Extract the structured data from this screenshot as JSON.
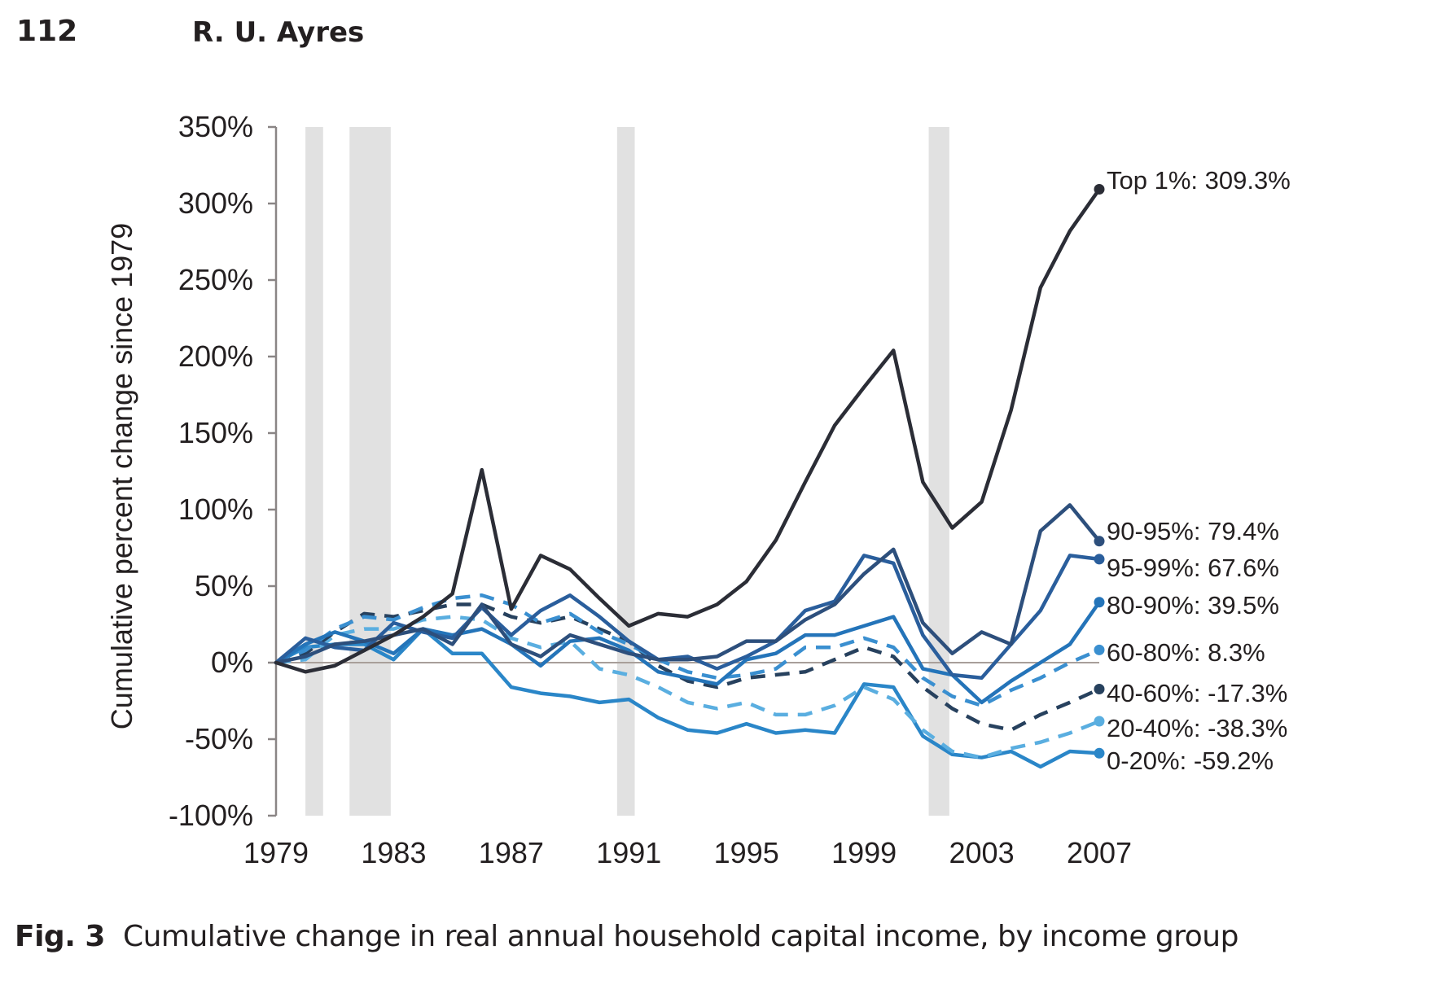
{
  "header": {
    "page_number": "112",
    "author": "R. U. Ayres"
  },
  "caption": {
    "label": "Fig. 3",
    "text": "Cumulative change in real annual household capital income, by income group"
  },
  "chart_data": {
    "type": "line",
    "title": "",
    "xlabel": "",
    "ylabel": "Cumulative percent change since 1979",
    "xlim": [
      1979,
      2007
    ],
    "ylim": [
      -100,
      350
    ],
    "x_ticks": [
      1979,
      1983,
      1987,
      1991,
      1995,
      1999,
      2003,
      2007
    ],
    "y_ticks": [
      -100,
      -50,
      0,
      50,
      100,
      150,
      200,
      250,
      300,
      350
    ],
    "y_tick_labels": [
      "-100%",
      "-50%",
      "0%",
      "50%",
      "100%",
      "150%",
      "200%",
      "250%",
      "300%",
      "350%"
    ],
    "x_tick_labels": [
      "1979",
      "1983",
      "1987",
      "1991",
      "1995",
      "1999",
      "2003",
      "2007"
    ],
    "grid": false,
    "recession_bands": [
      [
        1980.0,
        1980.6
      ],
      [
        1981.5,
        1982.9
      ],
      [
        1990.6,
        1991.2
      ],
      [
        2001.2,
        2001.9
      ]
    ],
    "legend": "end-of-line labels (right)",
    "x": [
      1979,
      1980,
      1981,
      1982,
      1983,
      1984,
      1985,
      1986,
      1987,
      1988,
      1989,
      1990,
      1991,
      1992,
      1993,
      1994,
      1995,
      1996,
      1997,
      1998,
      1999,
      2000,
      2001,
      2002,
      2003,
      2004,
      2005,
      2006,
      2007
    ],
    "series": [
      {
        "name": "Top 1%",
        "end_label": "Top 1%: 309.3%",
        "color": "#2b2d36",
        "dashed": false,
        "values": [
          0,
          -6,
          -2,
          8,
          18,
          30,
          45,
          126,
          35,
          70,
          61,
          42,
          24,
          32,
          30,
          38,
          53,
          80,
          118,
          155,
          180,
          204,
          118,
          88,
          105,
          165,
          245,
          282,
          309.3
        ]
      },
      {
        "name": "90-95%",
        "end_label": "90-95%: 79.4%",
        "color": "#2d4f7c",
        "dashed": false,
        "values": [
          0,
          4,
          12,
          14,
          18,
          22,
          12,
          38,
          12,
          4,
          18,
          12,
          6,
          2,
          2,
          4,
          14,
          14,
          28,
          38,
          58,
          74,
          26,
          6,
          20,
          12,
          86,
          103,
          79.4
        ]
      },
      {
        "name": "95-99%",
        "end_label": "95-99%: 67.6%",
        "color": "#2a5e9c",
        "dashed": false,
        "values": [
          0,
          16,
          10,
          8,
          26,
          20,
          16,
          36,
          18,
          34,
          44,
          30,
          14,
          2,
          4,
          -4,
          4,
          14,
          34,
          40,
          70,
          65,
          18,
          -8,
          -10,
          12,
          34,
          70,
          67.6
        ]
      },
      {
        "name": "80-90%",
        "end_label": "80-90%: 39.5%",
        "color": "#2474b9",
        "dashed": false,
        "values": [
          0,
          12,
          20,
          14,
          6,
          22,
          18,
          22,
          12,
          -2,
          14,
          16,
          8,
          -6,
          -10,
          -14,
          2,
          6,
          18,
          18,
          24,
          30,
          -4,
          -8,
          -26,
          -12,
          0,
          12,
          39.5
        ]
      },
      {
        "name": "60-80%",
        "end_label": "60-80%: 8.3%",
        "color": "#3a8fd0",
        "dashed": true,
        "values": [
          0,
          8,
          22,
          30,
          28,
          36,
          42,
          44,
          38,
          26,
          32,
          20,
          12,
          2,
          -6,
          -10,
          -8,
          -4,
          10,
          10,
          16,
          10,
          -10,
          -22,
          -28,
          -18,
          -10,
          0,
          8.3
        ]
      },
      {
        "name": "40-60%",
        "end_label": "40-60%: -17.3%",
        "color": "#27415e",
        "dashed": true,
        "values": [
          0,
          6,
          20,
          32,
          30,
          34,
          38,
          38,
          30,
          26,
          30,
          22,
          14,
          -2,
          -12,
          -16,
          -10,
          -8,
          -6,
          2,
          10,
          4,
          -16,
          -30,
          -40,
          -44,
          -34,
          -26,
          -17.3
        ]
      },
      {
        "name": "20-40%",
        "end_label": "20-40%: -38.3%",
        "color": "#5aaee0",
        "dashed": true,
        "values": [
          0,
          2,
          18,
          22,
          22,
          28,
          30,
          28,
          16,
          10,
          14,
          -4,
          -8,
          -16,
          -26,
          -30,
          -26,
          -34,
          -34,
          -28,
          -16,
          -24,
          -44,
          -58,
          -62,
          -56,
          -52,
          -46,
          -38.3
        ]
      },
      {
        "name": "0-20%",
        "end_label": "0-20%: -59.2%",
        "color": "#2a86c8",
        "dashed": false,
        "values": [
          0,
          10,
          12,
          12,
          2,
          22,
          6,
          6,
          -16,
          -20,
          -22,
          -26,
          -24,
          -36,
          -44,
          -46,
          -40,
          -46,
          -44,
          -46,
          -14,
          -16,
          -48,
          -60,
          -62,
          -58,
          -68,
          -58,
          -59.2
        ]
      }
    ]
  }
}
